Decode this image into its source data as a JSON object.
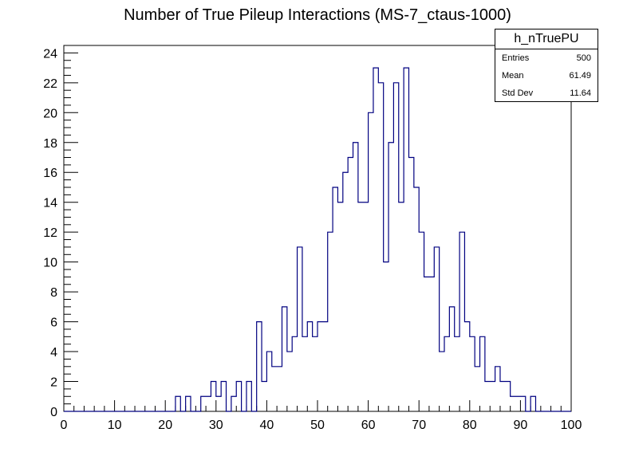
{
  "chart_data": {
    "type": "histogram",
    "title": "Number of True Pileup Interactions (MS-7_ctaus-1000)",
    "xlabel": "",
    "ylabel": "",
    "xlim": [
      0,
      100
    ],
    "ylim": [
      0,
      24.5
    ],
    "bin_width": 1,
    "x_ticks": [
      0,
      10,
      20,
      30,
      40,
      50,
      60,
      70,
      80,
      90,
      100
    ],
    "y_ticks": [
      0,
      2,
      4,
      6,
      8,
      10,
      12,
      14,
      16,
      18,
      20,
      22,
      24
    ],
    "line_color": "#000080",
    "values": [
      0,
      0,
      0,
      0,
      0,
      0,
      0,
      0,
      0,
      0,
      0,
      0,
      0,
      0,
      0,
      0,
      0,
      0,
      0,
      0,
      0,
      0,
      1,
      0,
      1,
      0,
      0,
      1,
      1,
      2,
      1,
      2,
      0,
      1,
      2,
      0,
      2,
      0,
      6,
      2,
      4,
      3,
      3,
      7,
      4,
      5,
      11,
      5,
      6,
      5,
      6,
      6,
      12,
      15,
      14,
      16,
      17,
      18,
      14,
      14,
      20,
      23,
      22,
      10,
      18,
      22,
      14,
      23,
      17,
      15,
      12,
      9,
      9,
      11,
      4,
      5,
      7,
      5,
      12,
      6,
      5,
      3,
      5,
      2,
      2,
      3,
      2,
      2,
      1,
      1,
      1,
      0,
      1,
      0,
      0,
      0,
      0,
      0,
      0,
      0
    ]
  },
  "stats": {
    "name": "h_nTruePU",
    "rows": [
      {
        "label": "Entries",
        "value": "500"
      },
      {
        "label": "Mean",
        "value": "61.49"
      },
      {
        "label": "Std Dev",
        "value": "11.64"
      }
    ]
  }
}
